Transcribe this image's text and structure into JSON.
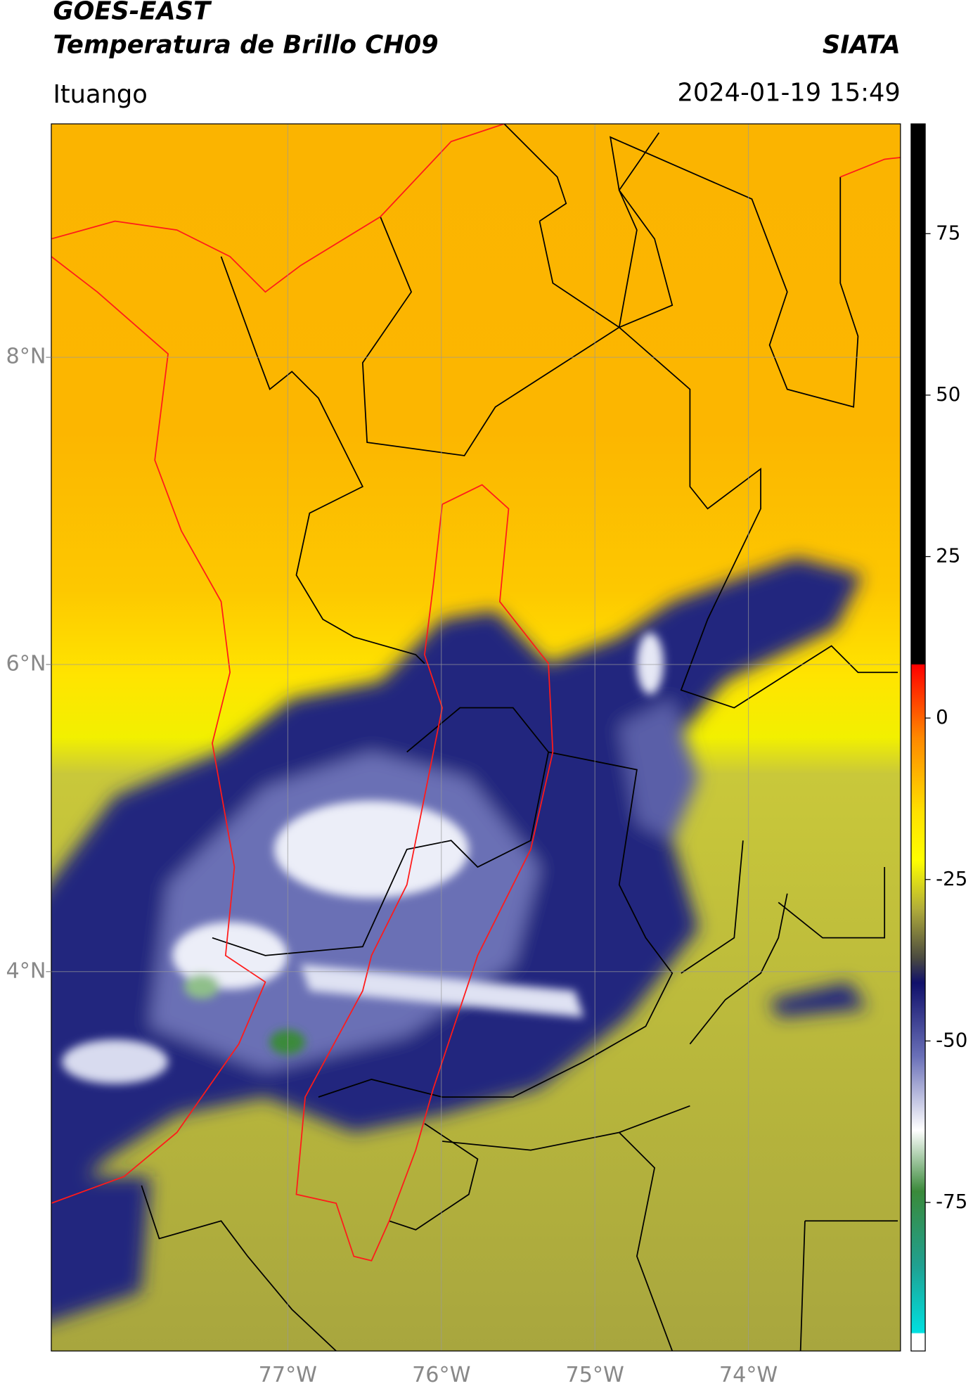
{
  "header": {
    "title": "GOES-EAST",
    "subtitle": "Temperatura de Brillo CH09",
    "source": "SIATA",
    "region": "Ituango",
    "datetime": "2024-01-19 15:49"
  },
  "chart_data": {
    "type": "map",
    "xlim": [
      -78.54,
      -73.01
    ],
    "ylim": [
      1.53,
      9.52
    ],
    "xticks": [
      {
        "value": -77,
        "label": "77°W"
      },
      {
        "value": -76,
        "label": "76°W"
      },
      {
        "value": -75,
        "label": "75°W"
      },
      {
        "value": -74,
        "label": "74°W"
      }
    ],
    "yticks": [
      {
        "value": 8,
        "label": "8°N"
      },
      {
        "value": 6,
        "label": "6°N"
      },
      {
        "value": 4,
        "label": "4°N"
      }
    ],
    "grid": true,
    "colorbar": {
      "lim": [
        -98,
        92
      ],
      "ticks": [
        75,
        50,
        25,
        0,
        -25,
        -50,
        -75
      ]
    }
  }
}
